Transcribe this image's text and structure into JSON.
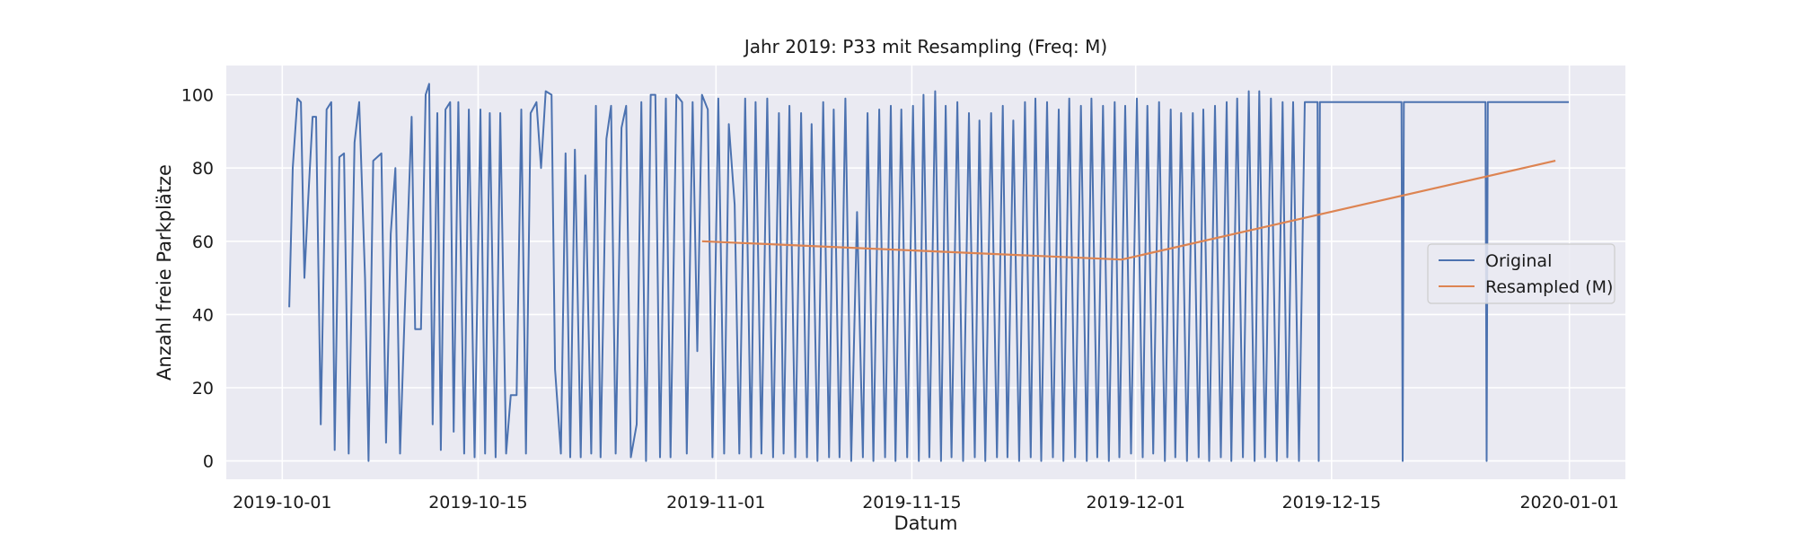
{
  "chart_data": {
    "type": "line",
    "title": "Jahr 2019: P33 mit Resampling (Freq: M)",
    "xlabel": "Datum",
    "ylabel": "Anzahl freie Parkplätze",
    "x_range": [
      "2019-09-27",
      "2020-01-05"
    ],
    "ylim": [
      -5,
      108
    ],
    "x_ticks": [
      "2019-10-01",
      "2019-10-15",
      "2019-11-01",
      "2019-11-15",
      "2019-12-01",
      "2019-12-15",
      "2020-01-01"
    ],
    "y_ticks": [
      0,
      20,
      40,
      60,
      80,
      100
    ],
    "grid": true,
    "legend_position": "center-right",
    "colors": {
      "background": "#eaeaf2",
      "grid": "#ffffff",
      "original": "#4c72b0",
      "resampled": "#dd8452"
    },
    "series": [
      {
        "name": "Original",
        "color": "#4c72b0",
        "points": [
          [
            "2019-10-01T12:00",
            42
          ],
          [
            "2019-10-01T18:00",
            80
          ],
          [
            "2019-10-02T02:00",
            99
          ],
          [
            "2019-10-02T08:00",
            98
          ],
          [
            "2019-10-02T14:00",
            50
          ],
          [
            "2019-10-02T20:00",
            70
          ],
          [
            "2019-10-03T04:00",
            94
          ],
          [
            "2019-10-03T10:00",
            94
          ],
          [
            "2019-10-03T18:00",
            10
          ],
          [
            "2019-10-04T04:00",
            96
          ],
          [
            "2019-10-04T12:00",
            98
          ],
          [
            "2019-10-04T18:00",
            3
          ],
          [
            "2019-10-05T02:00",
            83
          ],
          [
            "2019-10-05T10:00",
            84
          ],
          [
            "2019-10-05T18:00",
            2
          ],
          [
            "2019-10-06T04:00",
            87
          ],
          [
            "2019-10-06T12:00",
            98
          ],
          [
            "2019-10-06T22:00",
            50
          ],
          [
            "2019-10-07T04:00",
            0
          ],
          [
            "2019-10-07T12:00",
            82
          ],
          [
            "2019-10-08T02:00",
            84
          ],
          [
            "2019-10-08T10:00",
            5
          ],
          [
            "2019-10-08T18:00",
            62
          ],
          [
            "2019-10-09T02:00",
            80
          ],
          [
            "2019-10-09T10:00",
            2
          ],
          [
            "2019-10-09T18:00",
            40
          ],
          [
            "2019-10-10T06:00",
            94
          ],
          [
            "2019-10-10T12:00",
            36
          ],
          [
            "2019-10-10T22:00",
            36
          ],
          [
            "2019-10-11T06:00",
            100
          ],
          [
            "2019-10-11T12:00",
            103
          ],
          [
            "2019-10-11T18:00",
            10
          ],
          [
            "2019-10-12T02:00",
            95
          ],
          [
            "2019-10-12T08:00",
            3
          ],
          [
            "2019-10-12T16:00",
            96
          ],
          [
            "2019-10-13T00:00",
            98
          ],
          [
            "2019-10-13T06:00",
            8
          ],
          [
            "2019-10-13T14:00",
            98
          ],
          [
            "2019-10-14T00:00",
            2
          ],
          [
            "2019-10-14T08:00",
            96
          ],
          [
            "2019-10-14T18:00",
            1
          ],
          [
            "2019-10-15T04:00",
            96
          ],
          [
            "2019-10-15T12:00",
            2
          ],
          [
            "2019-10-15T20:00",
            95
          ],
          [
            "2019-10-16T06:00",
            1
          ],
          [
            "2019-10-16T14:00",
            95
          ],
          [
            "2019-10-17T00:00",
            2
          ],
          [
            "2019-10-17T08:00",
            18
          ],
          [
            "2019-10-17T18:00",
            18
          ],
          [
            "2019-10-18T02:00",
            96
          ],
          [
            "2019-10-18T10:00",
            2
          ],
          [
            "2019-10-18T18:00",
            95
          ],
          [
            "2019-10-19T04:00",
            98
          ],
          [
            "2019-10-19T12:00",
            80
          ],
          [
            "2019-10-19T20:00",
            101
          ],
          [
            "2019-10-20T06:00",
            100
          ],
          [
            "2019-10-20T12:00",
            25
          ],
          [
            "2019-10-20T22:00",
            2
          ],
          [
            "2019-10-21T06:00",
            84
          ],
          [
            "2019-10-21T14:00",
            1
          ],
          [
            "2019-10-21T22:00",
            85
          ],
          [
            "2019-10-22T08:00",
            1
          ],
          [
            "2019-10-22T16:00",
            78
          ],
          [
            "2019-10-23T02:00",
            2
          ],
          [
            "2019-10-23T10:00",
            97
          ],
          [
            "2019-10-23T18:00",
            1
          ],
          [
            "2019-10-24T04:00",
            88
          ],
          [
            "2019-10-24T12:00",
            97
          ],
          [
            "2019-10-24T20:00",
            2
          ],
          [
            "2019-10-25T06:00",
            91
          ],
          [
            "2019-10-25T14:00",
            97
          ],
          [
            "2019-10-25T22:00",
            1
          ],
          [
            "2019-10-26T08:00",
            10
          ],
          [
            "2019-10-26T16:00",
            98
          ],
          [
            "2019-10-27T00:00",
            0
          ],
          [
            "2019-10-27T08:00",
            100
          ],
          [
            "2019-10-27T16:00",
            100
          ],
          [
            "2019-10-28T00:00",
            1
          ],
          [
            "2019-10-28T10:00",
            99
          ],
          [
            "2019-10-28T18:00",
            1
          ],
          [
            "2019-10-29T04:00",
            100
          ],
          [
            "2019-10-29T14:00",
            98
          ],
          [
            "2019-10-29T22:00",
            2
          ],
          [
            "2019-10-30T08:00",
            98
          ],
          [
            "2019-10-30T16:00",
            30
          ],
          [
            "2019-10-31T00:00",
            100
          ],
          [
            "2019-10-31T10:00",
            96
          ],
          [
            "2019-10-31T18:00",
            1
          ],
          [
            "2019-11-01T04:00",
            99
          ],
          [
            "2019-11-01T14:00",
            2
          ],
          [
            "2019-11-01T22:00",
            92
          ],
          [
            "2019-11-02T08:00",
            70
          ],
          [
            "2019-11-02T16:00",
            2
          ],
          [
            "2019-11-03T02:00",
            99
          ],
          [
            "2019-11-03T12:00",
            1
          ],
          [
            "2019-11-03T20:00",
            98
          ],
          [
            "2019-11-04T06:00",
            2
          ],
          [
            "2019-11-04T16:00",
            99
          ],
          [
            "2019-11-05T02:00",
            1
          ],
          [
            "2019-11-05T12:00",
            95
          ],
          [
            "2019-11-05T20:00",
            2
          ],
          [
            "2019-11-06T06:00",
            97
          ],
          [
            "2019-11-06T16:00",
            1
          ],
          [
            "2019-11-07T02:00",
            95
          ],
          [
            "2019-11-07T12:00",
            1
          ],
          [
            "2019-11-07T20:00",
            92
          ],
          [
            "2019-11-08T06:00",
            0
          ],
          [
            "2019-11-08T16:00",
            98
          ],
          [
            "2019-11-09T02:00",
            1
          ],
          [
            "2019-11-09T10:00",
            96
          ],
          [
            "2019-11-09T20:00",
            1
          ],
          [
            "2019-11-10T06:00",
            99
          ],
          [
            "2019-11-10T16:00",
            0
          ],
          [
            "2019-11-11T02:00",
            68
          ],
          [
            "2019-11-11T12:00",
            1
          ],
          [
            "2019-11-11T20:00",
            95
          ],
          [
            "2019-11-12T06:00",
            0
          ],
          [
            "2019-11-12T16:00",
            96
          ],
          [
            "2019-11-13T02:00",
            1
          ],
          [
            "2019-11-13T12:00",
            97
          ],
          [
            "2019-11-13T20:00",
            0
          ],
          [
            "2019-11-14T06:00",
            96
          ],
          [
            "2019-11-14T16:00",
            1
          ],
          [
            "2019-11-15T02:00",
            97
          ],
          [
            "2019-11-15T12:00",
            0
          ],
          [
            "2019-11-15T20:00",
            100
          ],
          [
            "2019-11-16T06:00",
            1
          ],
          [
            "2019-11-16T16:00",
            101
          ],
          [
            "2019-11-17T02:00",
            0
          ],
          [
            "2019-11-17T10:00",
            97
          ],
          [
            "2019-11-17T20:00",
            1
          ],
          [
            "2019-11-18T06:00",
            98
          ],
          [
            "2019-11-18T16:00",
            0
          ],
          [
            "2019-11-19T02:00",
            95
          ],
          [
            "2019-11-19T12:00",
            1
          ],
          [
            "2019-11-19T20:00",
            93
          ],
          [
            "2019-11-20T06:00",
            0
          ],
          [
            "2019-11-20T16:00",
            95
          ],
          [
            "2019-11-21T02:00",
            1
          ],
          [
            "2019-11-21T12:00",
            97
          ],
          [
            "2019-11-21T20:00",
            1
          ],
          [
            "2019-11-22T06:00",
            93
          ],
          [
            "2019-11-22T16:00",
            0
          ],
          [
            "2019-11-23T02:00",
            98
          ],
          [
            "2019-11-23T12:00",
            1
          ],
          [
            "2019-11-23T20:00",
            99
          ],
          [
            "2019-11-24T06:00",
            0
          ],
          [
            "2019-11-24T16:00",
            98
          ],
          [
            "2019-11-25T02:00",
            1
          ],
          [
            "2019-11-25T12:00",
            96
          ],
          [
            "2019-11-25T20:00",
            0
          ],
          [
            "2019-11-26T06:00",
            99
          ],
          [
            "2019-11-26T16:00",
            1
          ],
          [
            "2019-11-27T02:00",
            97
          ],
          [
            "2019-11-27T12:00",
            0
          ],
          [
            "2019-11-27T20:00",
            99
          ],
          [
            "2019-11-28T06:00",
            1
          ],
          [
            "2019-11-28T16:00",
            97
          ],
          [
            "2019-11-29T02:00",
            0
          ],
          [
            "2019-11-29T12:00",
            98
          ],
          [
            "2019-11-29T20:00",
            1
          ],
          [
            "2019-11-30T06:00",
            97
          ],
          [
            "2019-11-30T16:00",
            2
          ],
          [
            "2019-12-01T02:00",
            99
          ],
          [
            "2019-12-01T12:00",
            1
          ],
          [
            "2019-12-01T20:00",
            97
          ],
          [
            "2019-12-02T06:00",
            2
          ],
          [
            "2019-12-02T16:00",
            98
          ],
          [
            "2019-12-03T02:00",
            0
          ],
          [
            "2019-12-03T12:00",
            96
          ],
          [
            "2019-12-03T20:00",
            1
          ],
          [
            "2019-12-04T06:00",
            95
          ],
          [
            "2019-12-04T16:00",
            0
          ],
          [
            "2019-12-05T02:00",
            95
          ],
          [
            "2019-12-05T12:00",
            1
          ],
          [
            "2019-12-05T20:00",
            96
          ],
          [
            "2019-12-06T06:00",
            0
          ],
          [
            "2019-12-06T16:00",
            97
          ],
          [
            "2019-12-07T02:00",
            1
          ],
          [
            "2019-12-07T12:00",
            98
          ],
          [
            "2019-12-07T20:00",
            0
          ],
          [
            "2019-12-08T06:00",
            99
          ],
          [
            "2019-12-08T16:00",
            1
          ],
          [
            "2019-12-09T02:00",
            101
          ],
          [
            "2019-12-09T12:00",
            0
          ],
          [
            "2019-12-09T20:00",
            101
          ],
          [
            "2019-12-10T06:00",
            1
          ],
          [
            "2019-12-10T16:00",
            99
          ],
          [
            "2019-12-11T02:00",
            0
          ],
          [
            "2019-12-11T12:00",
            98
          ],
          [
            "2019-12-11T20:00",
            1
          ],
          [
            "2019-12-12T06:00",
            98
          ],
          [
            "2019-12-12T16:00",
            0
          ],
          [
            "2019-12-13T02:00",
            98
          ],
          [
            "2019-12-14T00:00",
            98
          ],
          [
            "2019-12-14T02:00",
            0
          ],
          [
            "2019-12-14T04:00",
            98
          ],
          [
            "2019-12-20T00:00",
            98
          ],
          [
            "2019-12-20T02:00",
            0
          ],
          [
            "2019-12-20T04:00",
            98
          ],
          [
            "2019-12-26T00:00",
            98
          ],
          [
            "2019-12-26T02:00",
            0
          ],
          [
            "2019-12-26T04:00",
            98
          ],
          [
            "2019-12-31T23:00",
            98
          ]
        ]
      },
      {
        "name": "Resampled (M)",
        "color": "#dd8452",
        "points": [
          [
            "2019-10-31",
            60
          ],
          [
            "2019-11-30",
            55
          ],
          [
            "2019-12-31",
            82
          ]
        ]
      }
    ]
  }
}
